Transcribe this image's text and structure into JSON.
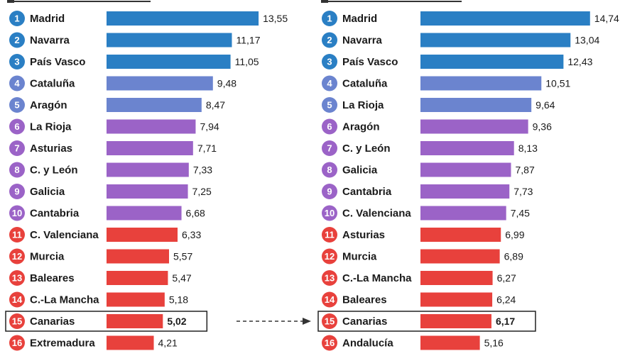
{
  "colors": {
    "top": "#2a7fc4",
    "upper": "#6b84cf",
    "middle": "#9b63c7",
    "lower": "#e8413c",
    "text": "#1a1a1a",
    "highlight_box": "#222222"
  },
  "highlight_region": "Canarias",
  "chart_data": [
    {
      "type": "bar",
      "orientation": "horizontal",
      "categories": [
        "Madrid",
        "Navarra",
        "País Vasco",
        "Cataluña",
        "Aragón",
        "La Rioja",
        "Asturias",
        "C. y León",
        "Galicia",
        "Cantabria",
        "C. Valenciana",
        "Murcia",
        "Baleares",
        "C.-La Mancha",
        "Canarias",
        "Extremadura"
      ],
      "ranks": [
        "1",
        "2",
        "3",
        "4",
        "5",
        "6",
        "7",
        "8",
        "9",
        "10",
        "11",
        "12",
        "13",
        "14",
        "15",
        "16"
      ],
      "values": [
        13.55,
        11.17,
        11.05,
        9.48,
        8.47,
        7.94,
        7.71,
        7.33,
        7.25,
        6.68,
        6.33,
        5.57,
        5.47,
        5.18,
        5.02,
        4.21
      ],
      "value_labels": [
        "13,55",
        "11,17",
        "11,05",
        "9,48",
        "8,47",
        "7,94",
        "7,71",
        "7,33",
        "7,25",
        "6,68",
        "6,33",
        "5,57",
        "5,47",
        "5,18",
        "5,02",
        "4,21"
      ],
      "color_groups": [
        "top",
        "top",
        "top",
        "upper",
        "upper",
        "middle",
        "middle",
        "middle",
        "middle",
        "middle",
        "lower",
        "lower",
        "lower",
        "lower",
        "lower",
        "lower"
      ]
    },
    {
      "type": "bar",
      "orientation": "horizontal",
      "categories": [
        "Madrid",
        "Navarra",
        "País Vasco",
        "Cataluña",
        "La Rioja",
        "Aragón",
        "C. y León",
        "Galicia",
        "Cantabria",
        "C. Valenciana",
        "Asturias",
        "Murcia",
        "C.-La Mancha",
        "Baleares",
        "Canarias",
        "Andalucía"
      ],
      "ranks": [
        "1",
        "2",
        "3",
        "4",
        "5",
        "6",
        "7",
        "8",
        "9",
        "10",
        "11",
        "12",
        "13",
        "14",
        "15",
        "16"
      ],
      "values": [
        14.74,
        13.04,
        12.43,
        10.51,
        9.64,
        9.36,
        8.13,
        7.87,
        7.73,
        7.45,
        6.99,
        6.89,
        6.27,
        6.24,
        6.17,
        5.16
      ],
      "value_labels": [
        "14,74",
        "13,04",
        "12,43",
        "10,51",
        "9,64",
        "9,36",
        "8,13",
        "7,87",
        "7,73",
        "7,45",
        "6,99",
        "6,89",
        "6,27",
        "6,24",
        "6,17",
        "5,16"
      ],
      "color_groups": [
        "top",
        "top",
        "top",
        "upper",
        "upper",
        "middle",
        "middle",
        "middle",
        "middle",
        "middle",
        "lower",
        "lower",
        "lower",
        "lower",
        "lower",
        "lower"
      ]
    }
  ]
}
